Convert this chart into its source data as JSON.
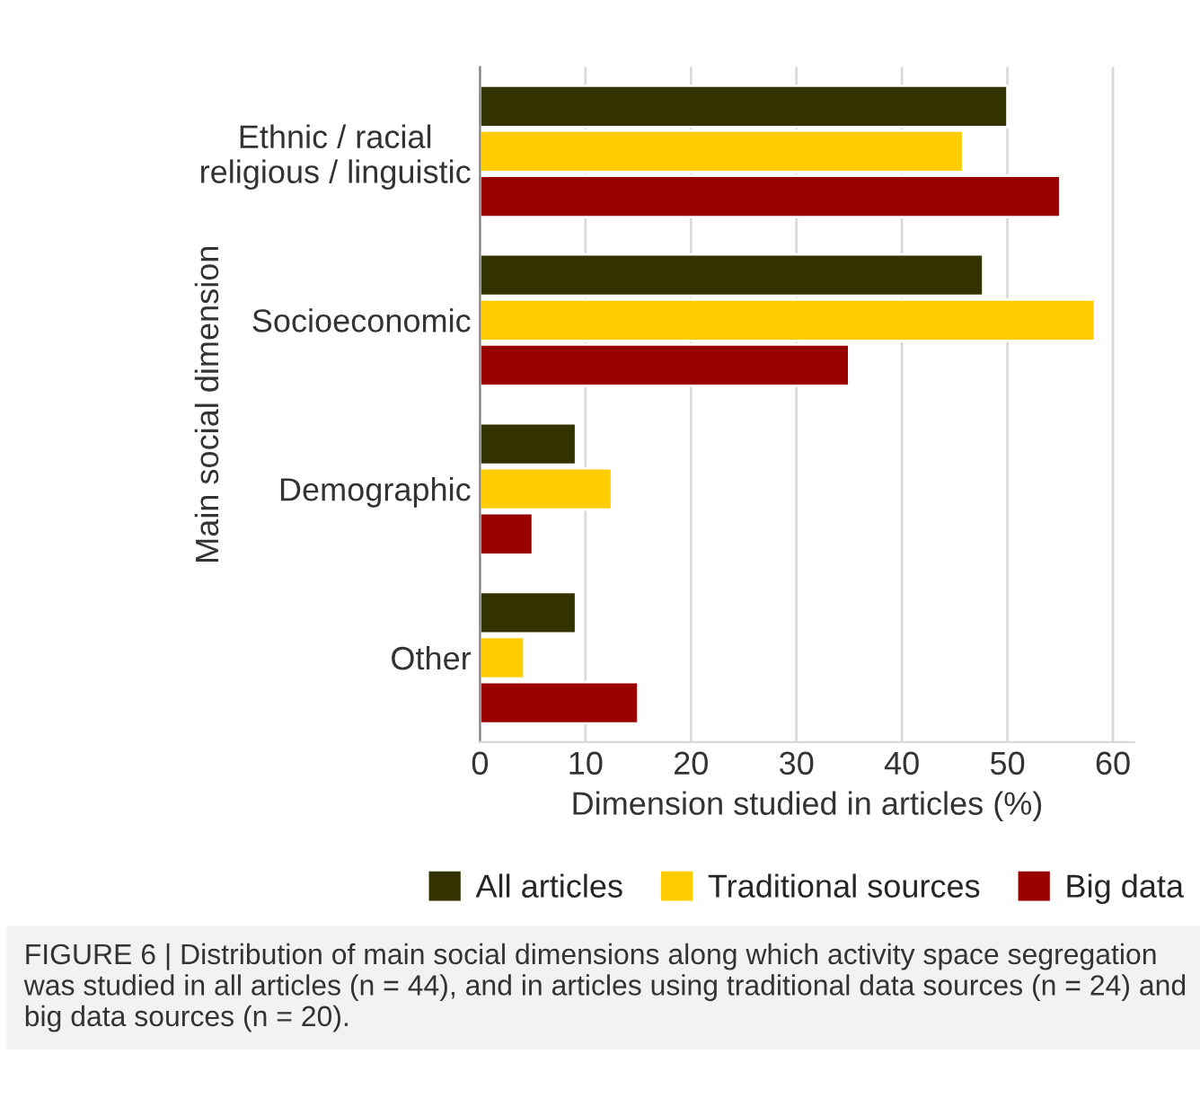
{
  "chart_data": {
    "type": "bar",
    "orientation": "horizontal",
    "xlabel": "Dimension studied in articles (%)",
    "ylabel": "Main social dimension",
    "categories": [
      "Ethnic / racial\nreligious / linguistic",
      "Socioeconomic",
      "Demographic",
      "Other"
    ],
    "series": [
      {
        "name": "All articles",
        "color": "#333300",
        "values": [
          50,
          47.7,
          9.1,
          9.1
        ]
      },
      {
        "name": "Traditional sources",
        "color": "#ffcc00",
        "values": [
          45.8,
          58.3,
          12.5,
          4.2
        ]
      },
      {
        "name": "Big data",
        "color": "#990000",
        "values": [
          55,
          35,
          5,
          15
        ]
      }
    ],
    "xlim": [
      0,
      62
    ],
    "xticks": [
      0,
      10,
      20,
      30,
      40,
      50,
      60
    ],
    "grid": "x",
    "legend": "bottom",
    "annotations": [
      "FIGURE 6 | Distribution of main social dimensions along which activity space segregation was studied in all articles (n = 44), and in articles using traditional data sources (n = 24) and big data sources (n = 20)."
    ]
  }
}
